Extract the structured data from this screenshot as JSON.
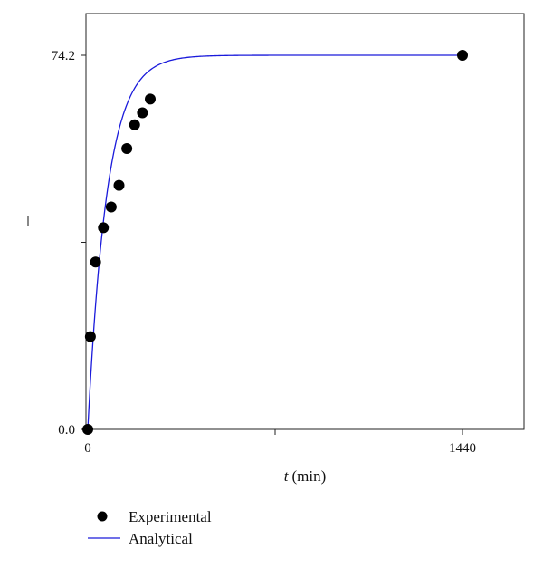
{
  "chart_data": {
    "type": "scatter",
    "xlabel_var": "t",
    "xlabel_unit": "(min)",
    "ylabel": "S",
    "x_ticks": [
      0,
      720,
      1440
    ],
    "x_tick_labels": [
      "0",
      "",
      "1440"
    ],
    "y_ticks": [
      0,
      37.1,
      74.2
    ],
    "y_tick_labels": [
      "0.0",
      "",
      "74.2"
    ],
    "xlim": [
      -10,
      1680
    ],
    "ylim": [
      0,
      74.2
    ],
    "grid": false,
    "legend_position": "bottom-left",
    "colors": {
      "experimental": "#000000",
      "analytical": "#1a1adb"
    },
    "series": [
      {
        "name": "Experimental",
        "kind": "scatter",
        "x": [
          0,
          10,
          30,
          60,
          90,
          120,
          150,
          180,
          210,
          240,
          1440
        ],
        "y": [
          0,
          18.4,
          33.2,
          40.0,
          44.1,
          48.4,
          55.7,
          60.4,
          62.8,
          65.5,
          74.2
        ]
      },
      {
        "name": "Analytical",
        "kind": "line",
        "model": {
          "type": "first-order",
          "s_inf": 74.2,
          "k_per_min": 0.0135
        }
      }
    ]
  }
}
